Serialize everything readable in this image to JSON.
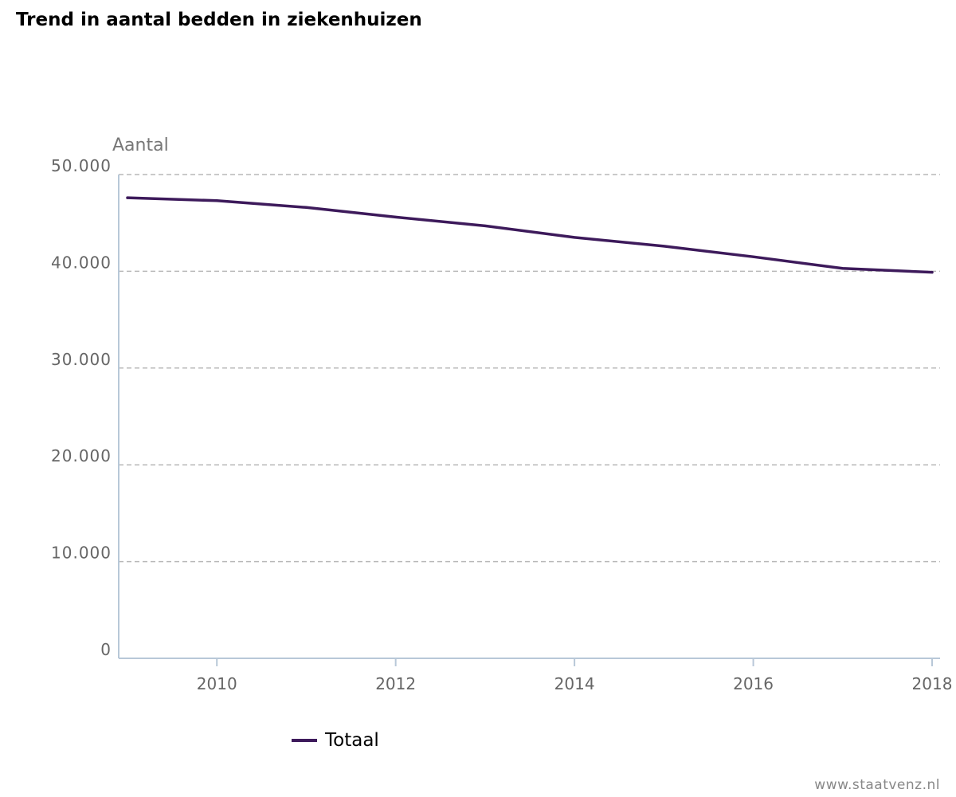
{
  "colors": {
    "series": "#3d1a5b",
    "grid": "#b8b8b8",
    "axis": "#b8c8d8",
    "tick_text": "#666666"
  },
  "chart_data": {
    "type": "line",
    "title": "Trend in aantal bedden in ziekenhuizen",
    "ylabel": "Aantal",
    "xlabel": "",
    "x": [
      2009,
      2010,
      2011,
      2012,
      2013,
      2014,
      2015,
      2016,
      2017,
      2018
    ],
    "series": [
      {
        "name": "Totaal",
        "values": [
          47600,
          47300,
          46600,
          45600,
          44700,
          43500,
          42600,
          41500,
          40300,
          39900
        ]
      }
    ],
    "xlim": [
      2009,
      2018
    ],
    "ylim": [
      0,
      50000
    ],
    "yticks": [
      0,
      10000,
      20000,
      30000,
      40000,
      50000
    ],
    "ytick_labels": [
      "0",
      "10.000",
      "20.000",
      "30.000",
      "40.000",
      "50.000"
    ],
    "xticks": [
      2010,
      2012,
      2014,
      2016,
      2018
    ],
    "xtick_labels": [
      "2010",
      "2012",
      "2014",
      "2016",
      "2018"
    ],
    "grid": true,
    "legend_position": "bottom-center"
  },
  "footer": {
    "source": "www.staatvenz.nl"
  }
}
